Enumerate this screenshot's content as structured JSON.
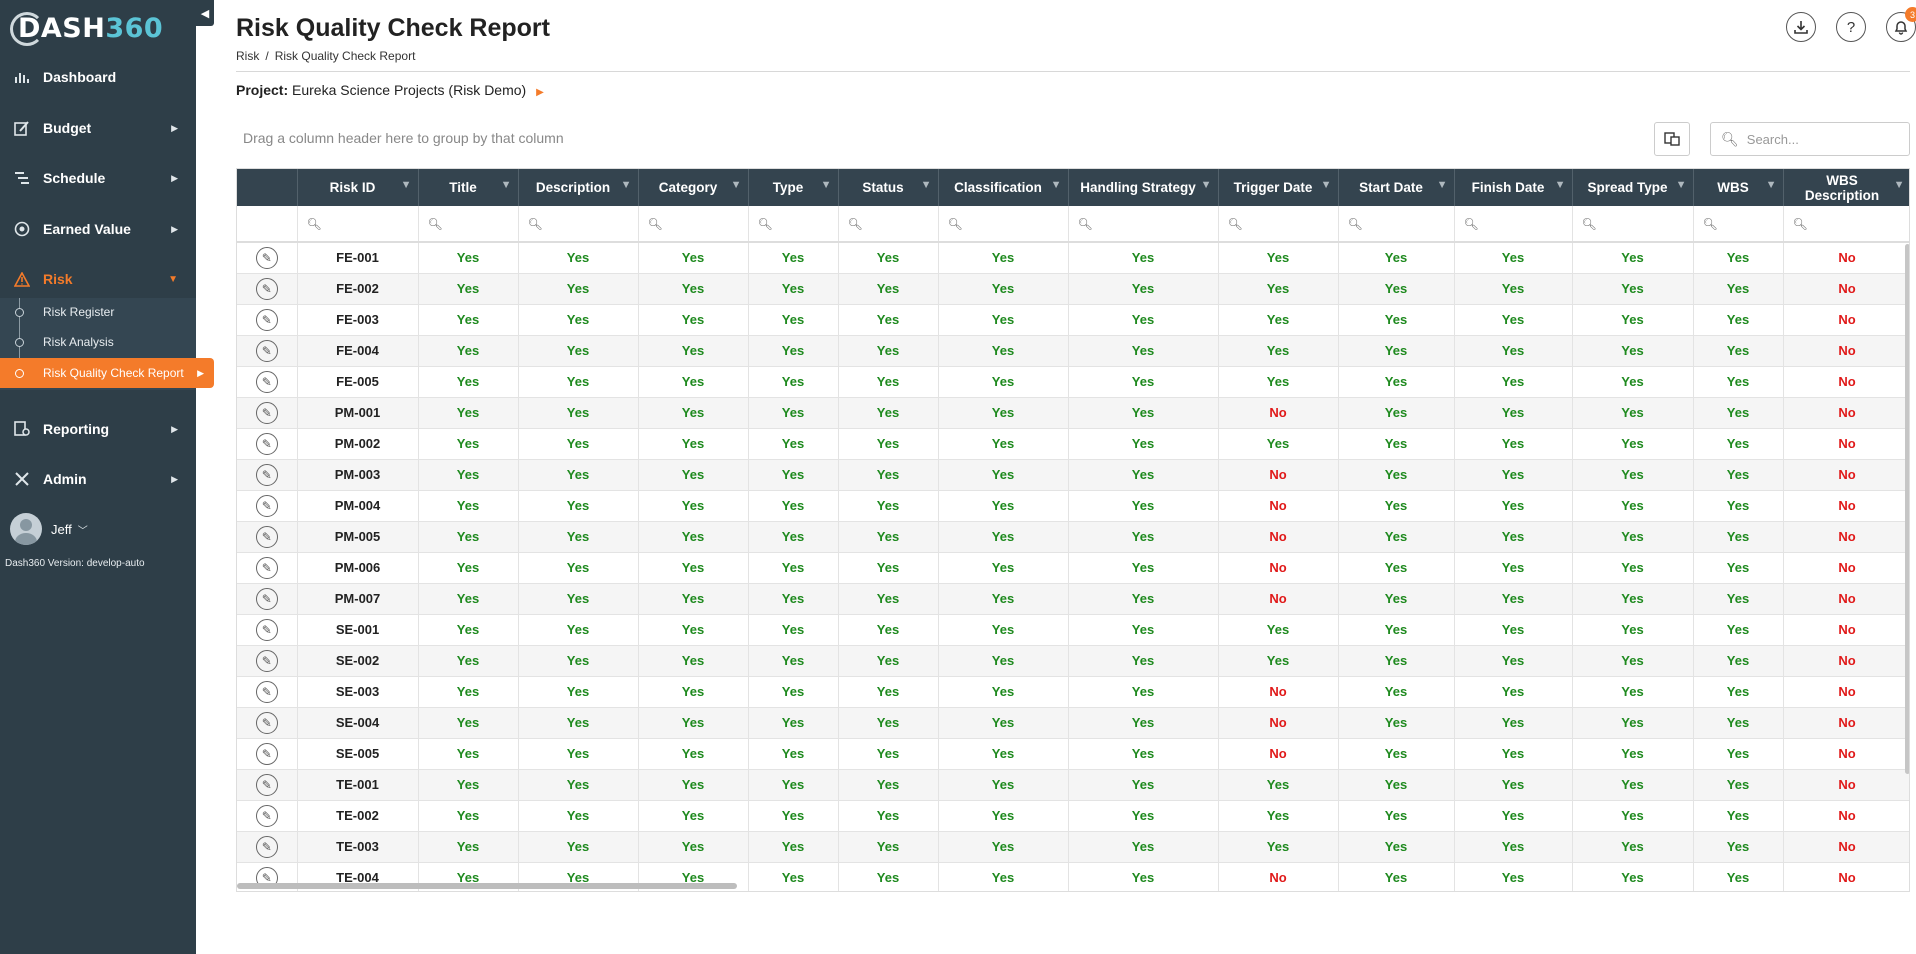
{
  "app": {
    "logo_main": "DASH",
    "logo_num": "360"
  },
  "sidebar": {
    "items": [
      {
        "label": "Dashboard",
        "icon": "dashboard-icon"
      },
      {
        "label": "Budget",
        "icon": "budget-icon"
      },
      {
        "label": "Schedule",
        "icon": "schedule-icon"
      },
      {
        "label": "Earned Value",
        "icon": "earned-value-icon"
      },
      {
        "label": "Risk",
        "icon": "warning-icon"
      },
      {
        "label": "Reporting",
        "icon": "reporting-icon"
      },
      {
        "label": "Admin",
        "icon": "tools-icon"
      }
    ],
    "risk_submenu": [
      "Risk Register",
      "Risk Analysis",
      "Risk Quality Check Report"
    ],
    "user_name": "Jeff",
    "version": "Dash360 Version: develop-auto"
  },
  "header": {
    "title": "Risk Quality Check Report",
    "breadcrumb": [
      "Risk",
      "/",
      "Risk Quality Check Report"
    ],
    "project_label": "Project:",
    "project_name": "Eureka Science Projects (Risk Demo)",
    "notification_count": "3"
  },
  "toolbar": {
    "group_hint": "Drag a column header here to group by that column",
    "search_placeholder": "Search..."
  },
  "colors": {
    "sidebar_bg": "#2e3e48",
    "accent": "#f47b2a",
    "header_bg": "#34444f",
    "yes": "#1f8a1f",
    "no": "#e01919"
  },
  "grid": {
    "columns": [
      "Risk ID",
      "Title",
      "Description",
      "Category",
      "Type",
      "Status",
      "Classification",
      "Handling Strategy",
      "Trigger Date",
      "Start Date",
      "Finish Date",
      "Spread Type",
      "WBS",
      "WBS Description"
    ],
    "rows": [
      {
        "id": "FE-001",
        "values": [
          "Yes",
          "Yes",
          "Yes",
          "Yes",
          "Yes",
          "Yes",
          "Yes",
          "Yes",
          "Yes",
          "Yes",
          "Yes",
          "Yes",
          "No"
        ]
      },
      {
        "id": "FE-002",
        "values": [
          "Yes",
          "Yes",
          "Yes",
          "Yes",
          "Yes",
          "Yes",
          "Yes",
          "Yes",
          "Yes",
          "Yes",
          "Yes",
          "Yes",
          "No"
        ]
      },
      {
        "id": "FE-003",
        "values": [
          "Yes",
          "Yes",
          "Yes",
          "Yes",
          "Yes",
          "Yes",
          "Yes",
          "Yes",
          "Yes",
          "Yes",
          "Yes",
          "Yes",
          "No"
        ]
      },
      {
        "id": "FE-004",
        "values": [
          "Yes",
          "Yes",
          "Yes",
          "Yes",
          "Yes",
          "Yes",
          "Yes",
          "Yes",
          "Yes",
          "Yes",
          "Yes",
          "Yes",
          "No"
        ]
      },
      {
        "id": "FE-005",
        "values": [
          "Yes",
          "Yes",
          "Yes",
          "Yes",
          "Yes",
          "Yes",
          "Yes",
          "Yes",
          "Yes",
          "Yes",
          "Yes",
          "Yes",
          "No"
        ]
      },
      {
        "id": "PM-001",
        "values": [
          "Yes",
          "Yes",
          "Yes",
          "Yes",
          "Yes",
          "Yes",
          "Yes",
          "No",
          "Yes",
          "Yes",
          "Yes",
          "Yes",
          "No"
        ]
      },
      {
        "id": "PM-002",
        "values": [
          "Yes",
          "Yes",
          "Yes",
          "Yes",
          "Yes",
          "Yes",
          "Yes",
          "Yes",
          "Yes",
          "Yes",
          "Yes",
          "Yes",
          "No"
        ]
      },
      {
        "id": "PM-003",
        "values": [
          "Yes",
          "Yes",
          "Yes",
          "Yes",
          "Yes",
          "Yes",
          "Yes",
          "No",
          "Yes",
          "Yes",
          "Yes",
          "Yes",
          "No"
        ]
      },
      {
        "id": "PM-004",
        "values": [
          "Yes",
          "Yes",
          "Yes",
          "Yes",
          "Yes",
          "Yes",
          "Yes",
          "No",
          "Yes",
          "Yes",
          "Yes",
          "Yes",
          "No"
        ]
      },
      {
        "id": "PM-005",
        "values": [
          "Yes",
          "Yes",
          "Yes",
          "Yes",
          "Yes",
          "Yes",
          "Yes",
          "No",
          "Yes",
          "Yes",
          "Yes",
          "Yes",
          "No"
        ]
      },
      {
        "id": "PM-006",
        "values": [
          "Yes",
          "Yes",
          "Yes",
          "Yes",
          "Yes",
          "Yes",
          "Yes",
          "No",
          "Yes",
          "Yes",
          "Yes",
          "Yes",
          "No"
        ]
      },
      {
        "id": "PM-007",
        "values": [
          "Yes",
          "Yes",
          "Yes",
          "Yes",
          "Yes",
          "Yes",
          "Yes",
          "No",
          "Yes",
          "Yes",
          "Yes",
          "Yes",
          "No"
        ]
      },
      {
        "id": "SE-001",
        "values": [
          "Yes",
          "Yes",
          "Yes",
          "Yes",
          "Yes",
          "Yes",
          "Yes",
          "Yes",
          "Yes",
          "Yes",
          "Yes",
          "Yes",
          "No"
        ]
      },
      {
        "id": "SE-002",
        "values": [
          "Yes",
          "Yes",
          "Yes",
          "Yes",
          "Yes",
          "Yes",
          "Yes",
          "Yes",
          "Yes",
          "Yes",
          "Yes",
          "Yes",
          "No"
        ]
      },
      {
        "id": "SE-003",
        "values": [
          "Yes",
          "Yes",
          "Yes",
          "Yes",
          "Yes",
          "Yes",
          "Yes",
          "No",
          "Yes",
          "Yes",
          "Yes",
          "Yes",
          "No"
        ]
      },
      {
        "id": "SE-004",
        "values": [
          "Yes",
          "Yes",
          "Yes",
          "Yes",
          "Yes",
          "Yes",
          "Yes",
          "No",
          "Yes",
          "Yes",
          "Yes",
          "Yes",
          "No"
        ]
      },
      {
        "id": "SE-005",
        "values": [
          "Yes",
          "Yes",
          "Yes",
          "Yes",
          "Yes",
          "Yes",
          "Yes",
          "No",
          "Yes",
          "Yes",
          "Yes",
          "Yes",
          "No"
        ]
      },
      {
        "id": "TE-001",
        "values": [
          "Yes",
          "Yes",
          "Yes",
          "Yes",
          "Yes",
          "Yes",
          "Yes",
          "Yes",
          "Yes",
          "Yes",
          "Yes",
          "Yes",
          "No"
        ]
      },
      {
        "id": "TE-002",
        "values": [
          "Yes",
          "Yes",
          "Yes",
          "Yes",
          "Yes",
          "Yes",
          "Yes",
          "Yes",
          "Yes",
          "Yes",
          "Yes",
          "Yes",
          "No"
        ]
      },
      {
        "id": "TE-003",
        "values": [
          "Yes",
          "Yes",
          "Yes",
          "Yes",
          "Yes",
          "Yes",
          "Yes",
          "Yes",
          "Yes",
          "Yes",
          "Yes",
          "Yes",
          "No"
        ]
      },
      {
        "id": "TE-004",
        "values": [
          "Yes",
          "Yes",
          "Yes",
          "Yes",
          "Yes",
          "Yes",
          "Yes",
          "No",
          "Yes",
          "Yes",
          "Yes",
          "Yes",
          "No"
        ]
      }
    ]
  }
}
